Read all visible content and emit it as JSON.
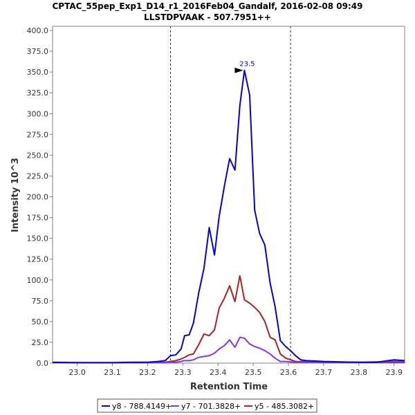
{
  "chart_data": {
    "type": "line",
    "title": "CPTAC_55pep_Exp1_D14_r1_2016Feb04_Gandalf, 2016-02-08 09:49",
    "subtitle": "LLSTDPVAAK - 507.7951++",
    "xlabel": "Retention Time",
    "ylabel": "Intensity 10^3",
    "xlim": [
      22.93,
      23.93
    ],
    "ylim": [
      0,
      405
    ],
    "xticks": [
      "23.0",
      "23.1",
      "23.2",
      "23.3",
      "23.4",
      "23.5",
      "23.6",
      "23.7",
      "23.8",
      "23.9"
    ],
    "xtick_values": [
      23.0,
      23.1,
      23.2,
      23.3,
      23.4,
      23.5,
      23.6,
      23.7,
      23.8,
      23.9
    ],
    "yticks": [
      "0.0",
      "25.0",
      "50.0",
      "75.0",
      "100.0",
      "125.0",
      "150.0",
      "175.0",
      "200.0",
      "225.0",
      "250.0",
      "275.0",
      "300.0",
      "325.0",
      "350.0",
      "375.0",
      "400.0"
    ],
    "ytick_values": [
      0,
      25,
      50,
      75,
      100,
      125,
      150,
      175,
      200,
      225,
      250,
      275,
      300,
      325,
      350,
      375,
      400
    ],
    "integration_bounds": [
      23.265,
      23.606
    ],
    "peak_annotation": {
      "x": 23.475,
      "y": 352,
      "label": "23.5",
      "color": "#0000cc"
    },
    "grid": false,
    "legend_position": "bottom",
    "series": [
      {
        "name": "y8 - 788.4149+",
        "color": "#0000dd",
        "x": [
          22.93,
          23.0,
          23.05,
          23.1,
          23.15,
          23.2,
          23.23,
          23.25,
          23.265,
          23.28,
          23.295,
          23.305,
          23.318,
          23.33,
          23.345,
          23.36,
          23.375,
          23.39,
          23.403,
          23.418,
          23.433,
          23.448,
          23.462,
          23.475,
          23.49,
          23.504,
          23.518,
          23.533,
          23.548,
          23.562,
          23.577,
          23.592,
          23.606,
          23.62,
          23.635,
          23.65,
          23.7,
          23.75,
          23.8,
          23.85,
          23.9,
          23.93
        ],
        "y": [
          1,
          0.5,
          0.5,
          0.5,
          1,
          1,
          2,
          3,
          9,
          10,
          17,
          33,
          34,
          48,
          84,
          114,
          163,
          130,
          176,
          213,
          246,
          232,
          310,
          352,
          322,
          184,
          156,
          142,
          96,
          68,
          27,
          20,
          15,
          9,
          4,
          3,
          2,
          1.5,
          1,
          1,
          4,
          3
        ]
      },
      {
        "name": "y7 - 701.3828+",
        "color": "#8833ee",
        "x": [
          22.93,
          23.1,
          23.2,
          23.25,
          23.265,
          23.28,
          23.295,
          23.305,
          23.318,
          23.33,
          23.345,
          23.36,
          23.375,
          23.39,
          23.403,
          23.418,
          23.433,
          23.448,
          23.462,
          23.475,
          23.49,
          23.504,
          23.518,
          23.533,
          23.548,
          23.562,
          23.577,
          23.592,
          23.606,
          23.62,
          23.7,
          23.8,
          23.9,
          23.93
        ],
        "y": [
          0.5,
          0.5,
          0.5,
          0.5,
          1,
          1,
          2,
          3,
          3,
          4,
          7,
          8,
          9,
          12,
          17,
          21,
          28,
          19,
          31,
          30,
          23,
          20,
          18,
          15,
          11,
          6,
          2,
          2,
          1.5,
          1,
          1,
          1,
          2,
          2
        ]
      },
      {
        "name": "y5 - 485.3082+",
        "color": "#aa2222",
        "x": [
          22.93,
          23.1,
          23.2,
          23.25,
          23.265,
          23.28,
          23.295,
          23.305,
          23.318,
          23.33,
          23.345,
          23.36,
          23.375,
          23.39,
          23.403,
          23.418,
          23.433,
          23.448,
          23.462,
          23.475,
          23.49,
          23.504,
          23.518,
          23.533,
          23.548,
          23.562,
          23.577,
          23.592,
          23.606,
          23.62,
          23.7,
          23.8,
          23.9,
          23.93
        ],
        "y": [
          0.5,
          0.5,
          0.5,
          1,
          2,
          3,
          5,
          7,
          10,
          11,
          22,
          35,
          33,
          40,
          66,
          78,
          93,
          74,
          105,
          76,
          72,
          67,
          61,
          50,
          31,
          28,
          11,
          6,
          4,
          2,
          1,
          1,
          1,
          1
        ]
      }
    ]
  }
}
